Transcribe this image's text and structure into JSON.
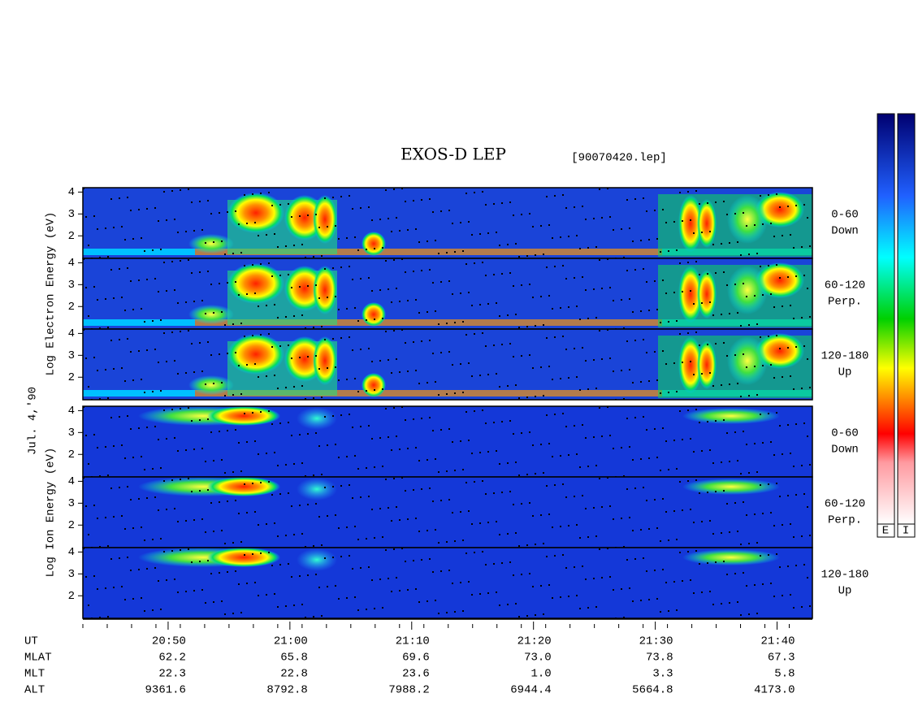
{
  "chart_data": {
    "type": "spectrogram",
    "title": "EXOS-D LEP",
    "file": "[90070420.lep]",
    "date_label": "Jul. 4,'90",
    "groups": [
      {
        "axis_label": "Log  Electron  Energy (eV)",
        "panels": [
          {
            "side_label": [
              "0-60",
              "Down"
            ]
          },
          {
            "side_label": [
              "60-120",
              "Perp."
            ]
          },
          {
            "side_label": [
              "120-180",
              "Up"
            ]
          }
        ]
      },
      {
        "axis_label": "Log  Ion  Energy (eV)",
        "panels": [
          {
            "side_label": [
              "0-60",
              "Down"
            ]
          },
          {
            "side_label": [
              "60-120",
              "Perp."
            ]
          },
          {
            "side_label": [
              "120-180",
              "Up"
            ]
          }
        ]
      }
    ],
    "ylim": [
      0.97,
      4.2
    ],
    "yticks": [
      2,
      3,
      4
    ],
    "xlim": [
      43,
      102.9
    ],
    "xticks": [
      {
        "value": 50,
        "label": "20:50"
      },
      {
        "value": 60,
        "label": "21:00"
      },
      {
        "value": 70,
        "label": "21:10"
      },
      {
        "value": 80,
        "label": "21:20"
      },
      {
        "value": 90,
        "label": "21:30"
      },
      {
        "value": 100,
        "label": "21:40"
      }
    ],
    "ephemeris": [
      {
        "label": "UT"
      },
      {
        "label": "MLAT",
        "values": [
          "62.2",
          "65.8",
          "69.6",
          "73.0",
          "73.8",
          "67.3"
        ]
      },
      {
        "label": "MLT",
        "values": [
          "22.3",
          "22.8",
          "23.6",
          "1.0",
          "3.3",
          "5.8"
        ]
      },
      {
        "label": "ALT",
        "values": [
          "9361.6",
          "8792.8",
          "7988.2",
          "6944.4",
          "5664.8",
          "4173.0"
        ]
      }
    ],
    "colorbar_labels": [
      "E",
      "I"
    ]
  }
}
